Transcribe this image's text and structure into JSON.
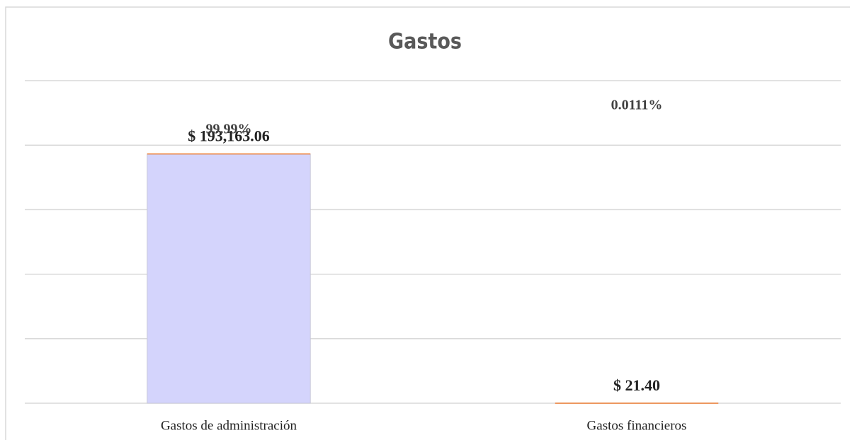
{
  "chart_data": {
    "type": "bar",
    "title": "Gastos",
    "categories": [
      "Gastos de administración",
      "Gastos financieros"
    ],
    "values": [
      193163.06,
      21.4
    ],
    "value_labels": [
      "$ 193,163.06",
      "$ 21.40"
    ],
    "percent_labels": [
      "99.99%",
      "0.0111%"
    ],
    "color": "#d4d4fc",
    "ylim": [
      0,
      250000
    ],
    "yticks": [
      0,
      50000,
      100000,
      150000,
      200000,
      250000
    ],
    "grid": true
  }
}
